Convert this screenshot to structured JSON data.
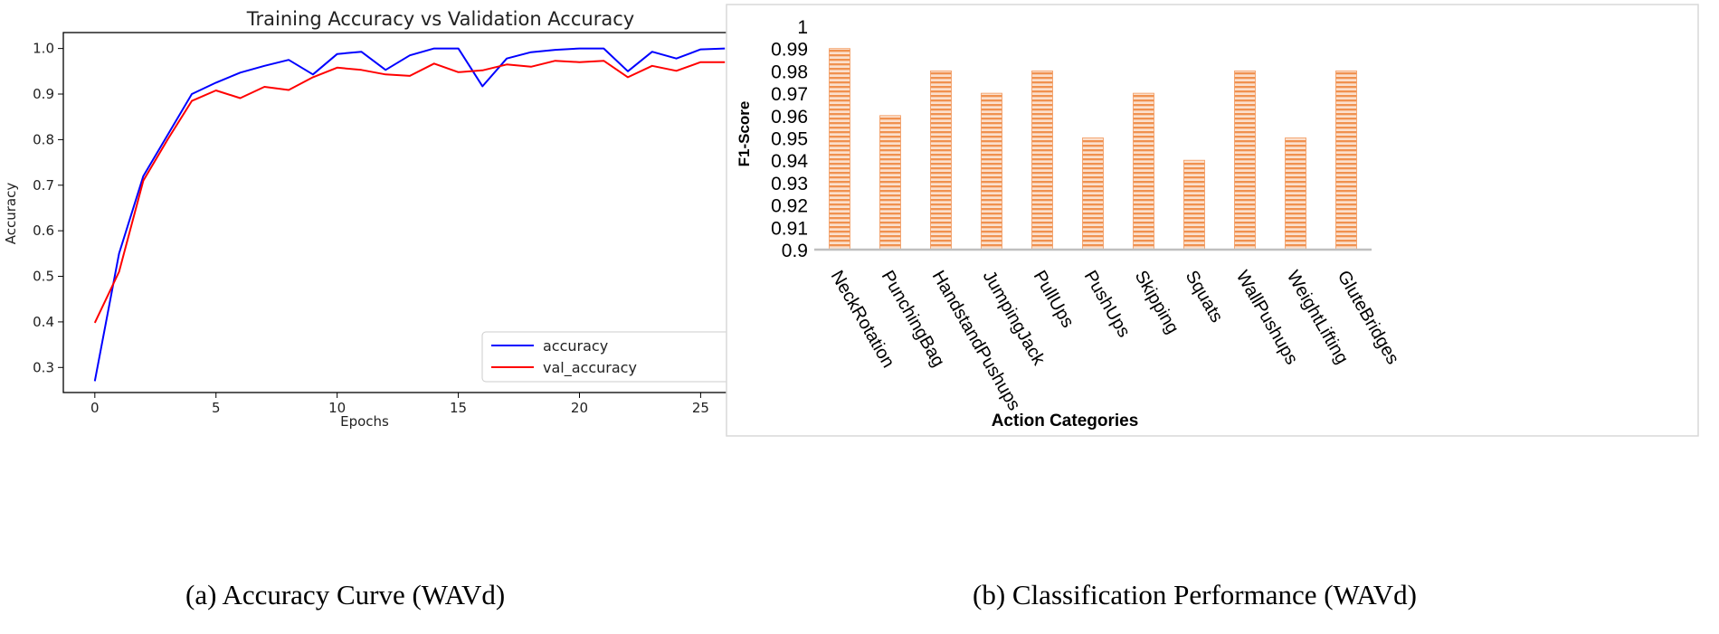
{
  "chart_data": [
    {
      "type": "line",
      "title": "Training Accuracy vs Validation Accuracy",
      "xlabel": "Epochs",
      "ylabel": "Accuracy",
      "xlim": [
        -1.3,
        27.3
      ],
      "ylim": [
        0.245,
        1.035
      ],
      "xticks": [
        0,
        5,
        10,
        15,
        20,
        25
      ],
      "yticks": [
        0.3,
        0.4,
        0.5,
        0.6,
        0.7,
        0.8,
        0.9,
        1.0
      ],
      "ytick_labels": [
        "0.3",
        "0.4",
        "0.5",
        "0.6",
        "0.7",
        "0.8",
        "0.9",
        "1.0"
      ],
      "legend_position": "lower-right",
      "x": [
        0,
        1,
        2,
        3,
        4,
        5,
        6,
        7,
        8,
        9,
        10,
        11,
        12,
        13,
        14,
        15,
        16,
        17,
        18,
        19,
        20,
        21,
        22,
        23,
        24,
        25,
        26
      ],
      "series": [
        {
          "name": "accuracy",
          "color": "#0000ff",
          "values": [
            0.27,
            0.55,
            0.72,
            0.81,
            0.9,
            0.925,
            0.947,
            0.962,
            0.975,
            0.943,
            0.988,
            0.993,
            0.953,
            0.985,
            1.0,
            1.0,
            0.917,
            0.978,
            0.992,
            0.997,
            1.0,
            1.0,
            0.95,
            0.993,
            0.978,
            0.998,
            1.0
          ]
        },
        {
          "name": "val_accuracy",
          "color": "#ff0000",
          "values": [
            0.398,
            0.51,
            0.71,
            0.8,
            0.885,
            0.908,
            0.891,
            0.916,
            0.909,
            0.937,
            0.958,
            0.953,
            0.943,
            0.94,
            0.967,
            0.948,
            0.952,
            0.965,
            0.96,
            0.973,
            0.97,
            0.973,
            0.937,
            0.962,
            0.951,
            0.97,
            0.97
          ]
        }
      ],
      "caption": "(a) Accuracy Curve (WAVd)"
    },
    {
      "type": "bar",
      "title": "",
      "xlabel": "Action Categories",
      "ylabel": "F1-Score",
      "ylim": [
        0.9,
        1.0
      ],
      "yticks": [
        0.9,
        0.91,
        0.92,
        0.93,
        0.94,
        0.95,
        0.96,
        0.97,
        0.98,
        0.99,
        1.0
      ],
      "ytick_labels": [
        "0.9",
        "0.91",
        "0.92",
        "0.93",
        "0.94",
        "0.95",
        "0.96",
        "0.97",
        "0.98",
        "0.99",
        "1"
      ],
      "bar_color": "#f2975a",
      "categories": [
        "NeckRotation",
        "PunchingBag",
        "HandstandPushups",
        "JumpingJack",
        "PullUps",
        "PushUps",
        "Skipping",
        "Squats",
        "WallPushups",
        "WeightLifting",
        "GluteBridges"
      ],
      "values": [
        0.99,
        0.96,
        0.98,
        0.97,
        0.98,
        0.95,
        0.97,
        0.94,
        0.98,
        0.95,
        0.98
      ],
      "caption": "(b) Classification Performance (WAVd)"
    }
  ]
}
